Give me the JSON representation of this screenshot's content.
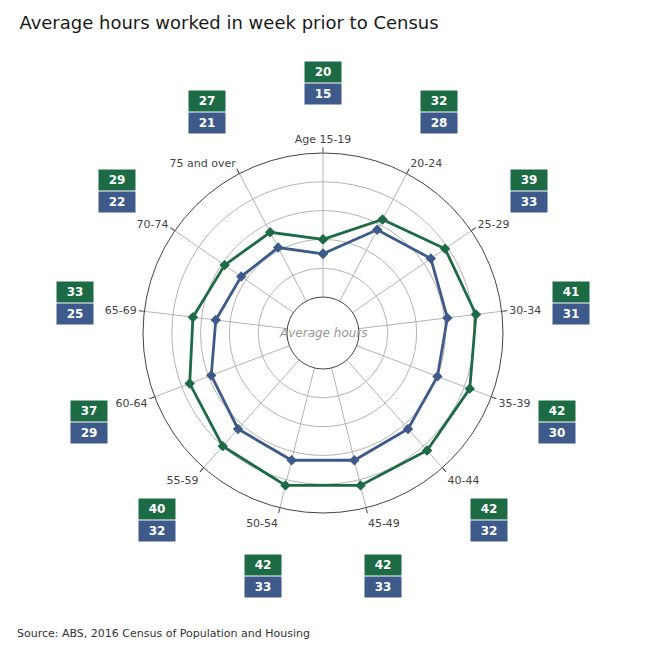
{
  "chart_data": {
    "type": "radar",
    "title": "Average hours worked in week prior to Census",
    "annotations": [
      "Source: ABS, 2016 Census of Population and Housing",
      "Average hours"
    ],
    "categories": [
      "Age 15-19",
      "20-24",
      "25-29",
      "30-34",
      "35-39",
      "40-44",
      "45-49",
      "50-54",
      "55-59",
      "60-64",
      "65-69",
      "70-74",
      "75 and over"
    ],
    "series": [
      {
        "color": "#1d6b44",
        "values": [
          20,
          32,
          39,
          41,
          42,
          42,
          42,
          42,
          40,
          37,
          33,
          29,
          27
        ]
      },
      {
        "color": "#3d5a8a",
        "values": [
          15,
          28,
          33,
          31,
          30,
          32,
          33,
          33,
          32,
          29,
          25,
          22,
          21
        ]
      }
    ],
    "ylim": [
      0,
      50
    ],
    "yticks": [
      0,
      10,
      20,
      30,
      40,
      50
    ],
    "grid": true,
    "tick_labels": "x",
    "data_labels": true,
    "marker": "diamond",
    "line_style": "solid"
  }
}
